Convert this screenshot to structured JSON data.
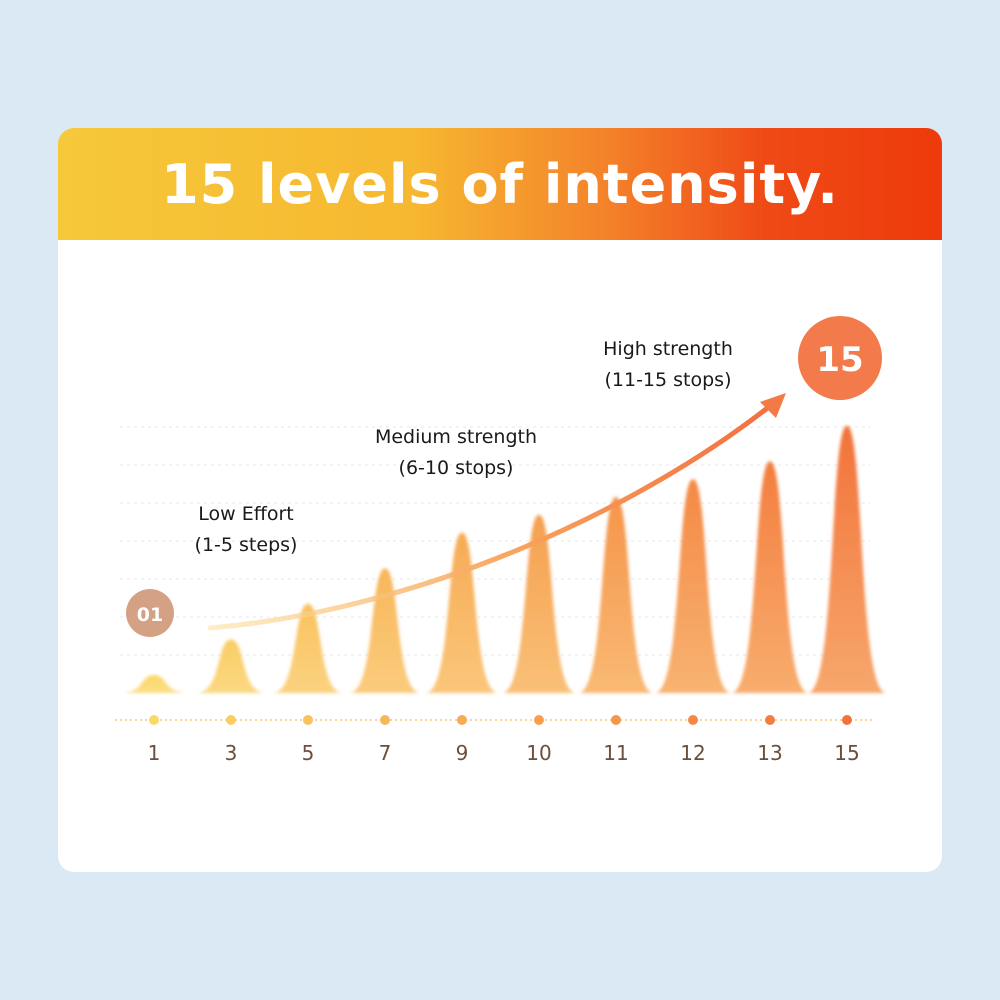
{
  "banner": {
    "title": "15 levels of intensity."
  },
  "chart_data": {
    "type": "bar",
    "categories": [
      "1",
      "3",
      "5",
      "7",
      "9",
      "10",
      "11",
      "12",
      "13",
      "15"
    ],
    "values": [
      1,
      3,
      5,
      7,
      9,
      10,
      11,
      12,
      13,
      15
    ],
    "ylim": [
      0,
      17
    ],
    "grid": true,
    "start_badge": "01",
    "end_badge": "15",
    "annotations": [
      {
        "line1": "Low Effort",
        "line2": "(1-5 steps)"
      },
      {
        "line1": "Medium strength",
        "line2": "(6-10 stops)"
      },
      {
        "line1": "High strength",
        "line2": "(11-15 stops)"
      }
    ],
    "colors": {
      "low": "#fbd86a",
      "high": "#f2733a",
      "badge_start": "#d4a184",
      "badge_end": "#f37a4a",
      "arrow": "#f47a45",
      "tick_text": "#6b4e3d"
    }
  }
}
